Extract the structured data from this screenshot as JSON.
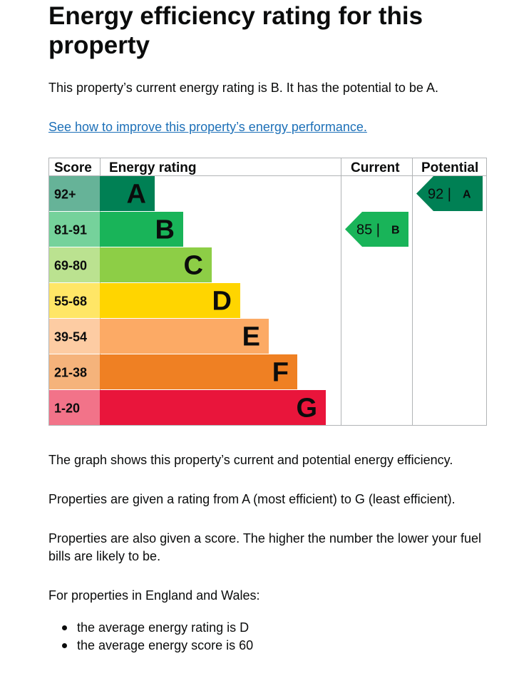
{
  "page": {
    "title": "Energy efficiency rating for this property",
    "intro": "This property’s current energy rating is B. It has the potential to be A.",
    "improve_link": "See how to improve this property’s energy performance.",
    "paragraphs": [
      "The graph shows this property’s current and potential energy efficiency.",
      "Properties are given a rating from A (most efficient) to G (least efficient).",
      "Properties are also given a score. The higher the number the lower your fuel bills are likely to be.",
      "For properties in England and Wales:"
    ],
    "bullets": [
      "the average energy rating is D",
      "the average energy score is 60"
    ]
  },
  "chart_data": {
    "type": "bar",
    "headers": {
      "score": "Score",
      "rating": "Energy rating",
      "current": "Current",
      "potential": "Potential"
    },
    "bands": [
      {
        "letter": "A",
        "range": "92+",
        "color": "#008054",
        "score_bg": "#66b398"
      },
      {
        "letter": "B",
        "range": "81-91",
        "color": "#19b459",
        "score_bg": "#75d29b"
      },
      {
        "letter": "C",
        "range": "69-80",
        "color": "#8dce46",
        "score_bg": "#bbe290"
      },
      {
        "letter": "D",
        "range": "55-68",
        "color": "#ffd500",
        "score_bg": "#ffe666"
      },
      {
        "letter": "E",
        "range": "39-54",
        "color": "#fcaa65",
        "score_bg": "#fdcca3"
      },
      {
        "letter": "F",
        "range": "21-38",
        "color": "#ef8023",
        "score_bg": "#f5b37b"
      },
      {
        "letter": "G",
        "range": "1-20",
        "color": "#e9153b",
        "score_bg": "#f27389"
      }
    ],
    "current": {
      "score": 85,
      "band": "B",
      "label": "85 |",
      "letter": "B"
    },
    "potential": {
      "score": 92,
      "band": "A",
      "label": "92 |",
      "letter": "A"
    }
  }
}
